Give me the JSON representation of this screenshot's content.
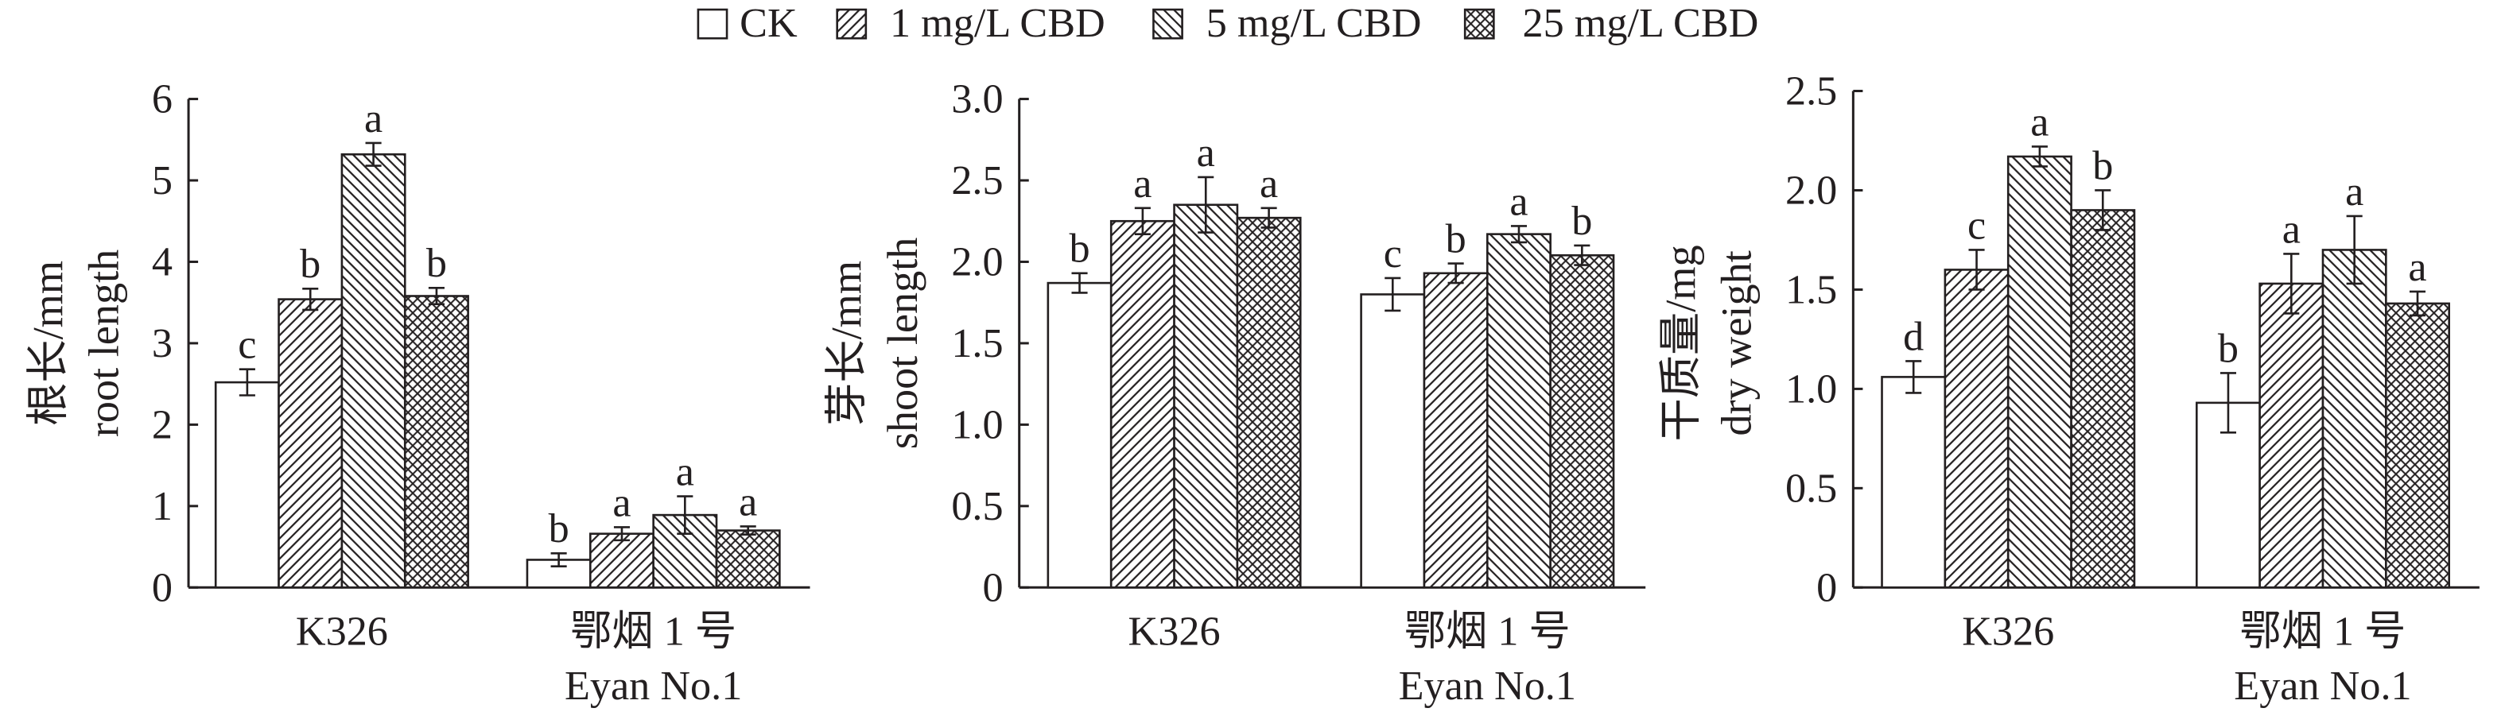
{
  "legend": [
    "CK",
    "1 mg/L CBD",
    "5 mg/L CBD",
    "25 mg/L CBD"
  ],
  "chart_data": [
    {
      "type": "bar",
      "ylabel": [
        "根长/mm",
        "root length"
      ],
      "categories": [
        [
          "K326"
        ],
        [
          "鄂烟 1 号",
          "Eyan No.1"
        ]
      ],
      "ylim": [
        0,
        6
      ],
      "yticks": [
        "0",
        "1",
        "2",
        "3",
        "4",
        "5",
        "6"
      ],
      "series": [
        {
          "name": "CK",
          "values": [
            2.52,
            0.34
          ],
          "errors": [
            0.16,
            0.08
          ],
          "letters": [
            "c",
            "b"
          ]
        },
        {
          "name": "1 mg/L CBD",
          "values": [
            3.54,
            0.66
          ],
          "errors": [
            0.13,
            0.08
          ],
          "letters": [
            "b",
            "a"
          ]
        },
        {
          "name": "5 mg/L CBD",
          "values": [
            5.32,
            0.89
          ],
          "errors": [
            0.14,
            0.23
          ],
          "letters": [
            "a",
            "a"
          ]
        },
        {
          "name": "25 mg/L CBD",
          "values": [
            3.58,
            0.7
          ],
          "errors": [
            0.1,
            0.05
          ],
          "letters": [
            "b",
            "a"
          ]
        }
      ]
    },
    {
      "type": "bar",
      "ylabel": [
        "芽长/mm",
        "shoot length"
      ],
      "categories": [
        [
          "K326"
        ],
        [
          "鄂烟 1 号",
          "Eyan No.1"
        ]
      ],
      "ylim": [
        0,
        3.0
      ],
      "yticks": [
        "0",
        "0.5",
        "1.0",
        "1.5",
        "2.0",
        "2.5",
        "3.0"
      ],
      "series": [
        {
          "name": "CK",
          "values": [
            1.87,
            1.8
          ],
          "errors": [
            0.06,
            0.1
          ],
          "letters": [
            "b",
            "c"
          ]
        },
        {
          "name": "1 mg/L CBD",
          "values": [
            2.25,
            1.93
          ],
          "errors": [
            0.08,
            0.06
          ],
          "letters": [
            "a",
            "b"
          ]
        },
        {
          "name": "5 mg/L CBD",
          "values": [
            2.35,
            2.17
          ],
          "errors": [
            0.17,
            0.05
          ],
          "letters": [
            "a",
            "a"
          ]
        },
        {
          "name": "25 mg/L CBD",
          "values": [
            2.27,
            2.04
          ],
          "errors": [
            0.06,
            0.06
          ],
          "letters": [
            "a",
            "b"
          ]
        }
      ]
    },
    {
      "type": "bar",
      "ylabel": [
        "干质量/mg",
        "dry weight"
      ],
      "categories": [
        [
          "K326"
        ],
        [
          "鄂烟 1 号",
          "Eyan No.1"
        ]
      ],
      "ylim": [
        0,
        2.5
      ],
      "yticks": [
        "0",
        "0.5",
        "1.0",
        "1.5",
        "2.0",
        "2.5"
      ],
      "series": [
        {
          "name": "CK",
          "values": [
            1.06,
            0.93
          ],
          "errors": [
            0.08,
            0.15
          ],
          "letters": [
            "d",
            "b"
          ]
        },
        {
          "name": "1 mg/L CBD",
          "values": [
            1.6,
            1.53
          ],
          "errors": [
            0.1,
            0.15
          ],
          "letters": [
            "c",
            "a"
          ]
        },
        {
          "name": "5 mg/L CBD",
          "values": [
            2.17,
            1.7
          ],
          "errors": [
            0.05,
            0.17
          ],
          "letters": [
            "a",
            "a"
          ]
        },
        {
          "name": "25 mg/L CBD",
          "values": [
            1.9,
            1.43
          ],
          "errors": [
            0.1,
            0.06
          ],
          "letters": [
            "b",
            "a"
          ]
        }
      ]
    }
  ]
}
